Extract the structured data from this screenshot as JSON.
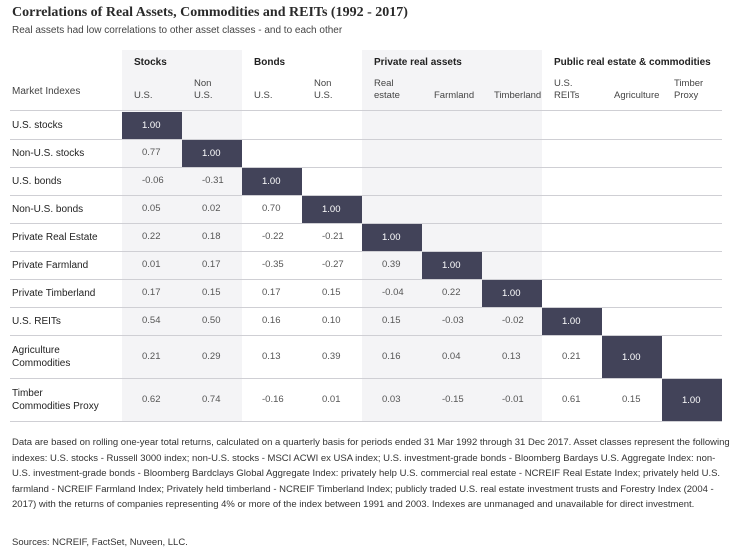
{
  "title": "Correlations of Real Assets, Commodities and REITs (1992 - 2017)",
  "subtitle": "Real assets had low correlations to other asset classes - and to each other",
  "chart_data": {
    "type": "table",
    "row_header_label": "Market Indexes",
    "groups": [
      {
        "name": "Stocks",
        "columns": [
          "U.S.",
          "Non U.S."
        ]
      },
      {
        "name": "Bonds",
        "columns": [
          "U.S.",
          "Non U.S."
        ]
      },
      {
        "name": "Private real assets",
        "columns": [
          "Real estate",
          "Farmland",
          "Timberland"
        ]
      },
      {
        "name": "Public real estate & commodities",
        "columns": [
          "U.S. REITs",
          "Agriculture",
          "Timber Proxy"
        ]
      }
    ],
    "rows": [
      {
        "label": "U.S. stocks",
        "values": [
          "1.00"
        ]
      },
      {
        "label": "Non-U.S. stocks",
        "values": [
          "0.77",
          "1.00"
        ]
      },
      {
        "label": "U.S. bonds",
        "values": [
          "-0.06",
          "-0.31",
          "1.00"
        ]
      },
      {
        "label": "Non-U.S. bonds",
        "values": [
          "0.05",
          "0.02",
          "0.70",
          "1.00"
        ]
      },
      {
        "label": "Private Real Estate",
        "values": [
          "0.22",
          "0.18",
          "-0.22",
          "-0.21",
          "1.00"
        ]
      },
      {
        "label": "Private Farmland",
        "values": [
          "0.01",
          "0.17",
          "-0.35",
          "-0.27",
          "0.39",
          "1.00"
        ]
      },
      {
        "label": "Private Timberland",
        "values": [
          "0.17",
          "0.15",
          "0.17",
          "0.15",
          "-0.04",
          "0.22",
          "1.00"
        ]
      },
      {
        "label": "U.S. REITs",
        "values": [
          "0.54",
          "0.50",
          "0.16",
          "0.10",
          "0.15",
          "-0.03",
          "-0.02",
          "1.00"
        ]
      },
      {
        "label": "Agriculture Commodities",
        "values": [
          "0.21",
          "0.29",
          "0.13",
          "0.39",
          "0.16",
          "0.04",
          "0.13",
          "0.21",
          "1.00"
        ]
      },
      {
        "label": "Timber Commodities Proxy",
        "values": [
          "0.62",
          "0.74",
          "-0.16",
          "0.01",
          "0.03",
          "-0.15",
          "-0.01",
          "0.61",
          "0.15",
          "1.00"
        ]
      }
    ]
  },
  "note": "Data are based on rolling one-year total returns, calculated on a quarterly basis for periods ended 31 Mar 1992 through 31 Dec 2017. Asset classes represent the following indexes: U.S. stocks - Russell 3000 index; non-U.S. stocks - MSCI ACWI ex USA index; U.S. investment-grade bonds - Bloomberg Bardays U.S. Aggregate Index: non-U.S. investment-grade bonds - Bloomberg Bardclays Global Aggregate Index: privately help U.S. commercial real estate - NCREIF Real Estate Index; privately held U.S. farmland - NCREIF Farmland Index; Privately held timberland - NCREIF Timberland Index; publicly traded U.S. real estate investment trusts and Forestry Index (2004 - 2017) with the returns of companies representing 4% or more of the index between 1991 and 2003. Indexes are unmanaged and unavailable for direct investment.",
  "sources": "Sources: NCREIF, FactSet, Nuveen, LLC.",
  "colors": {
    "diagonal": "#424359",
    "shade": "#f4f4f6",
    "rule": "#cfcfd4"
  }
}
